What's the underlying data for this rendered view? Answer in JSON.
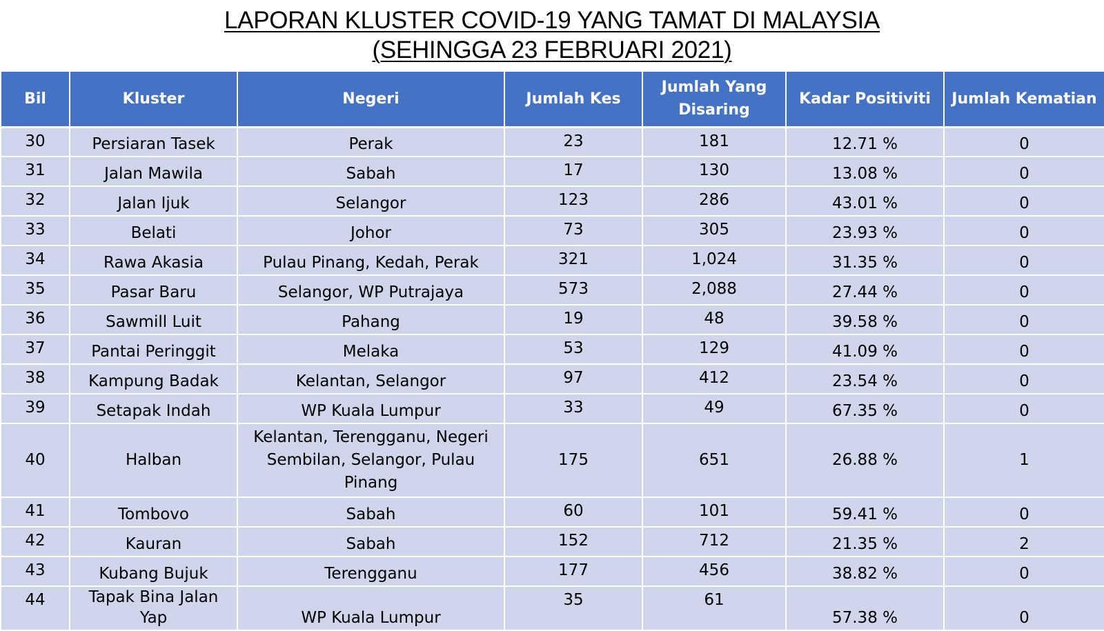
{
  "title": {
    "line1": "LAPORAN KLUSTER COVID-19 YANG TAMAT DI MALAYSIA",
    "line2": "(SEHINGGA  23 FEBRUARI 2021)"
  },
  "table": {
    "headers": [
      "Bil",
      "Kluster",
      "Negeri",
      "Jumlah Kes",
      "Jumlah Yang Disaring",
      "Kadar Positiviti",
      "Jumlah Kematian"
    ],
    "rows": [
      {
        "bil": "30",
        "kluster": "Persiaran Tasek",
        "negeri": "Perak",
        "kes": "23",
        "disaring": "181",
        "positiviti": "12.71 %",
        "kematian": "0"
      },
      {
        "bil": "31",
        "kluster": "Jalan Mawila",
        "negeri": "Sabah",
        "kes": "17",
        "disaring": "130",
        "positiviti": "13.08 %",
        "kematian": "0"
      },
      {
        "bil": "32",
        "kluster": "Jalan Ijuk",
        "negeri": "Selangor",
        "kes": "123",
        "disaring": "286",
        "positiviti": "43.01 %",
        "kematian": "0"
      },
      {
        "bil": "33",
        "kluster": "Belati",
        "negeri": "Johor",
        "kes": "73",
        "disaring": "305",
        "positiviti": "23.93 %",
        "kematian": "0"
      },
      {
        "bil": "34",
        "kluster": "Rawa Akasia",
        "negeri": "Pulau Pinang, Kedah, Perak",
        "kes": "321",
        "disaring": "1,024",
        "positiviti": "31.35 %",
        "kematian": "0"
      },
      {
        "bil": "35",
        "kluster": "Pasar Baru",
        "negeri": "Selangor, WP Putrajaya",
        "kes": "573",
        "disaring": "2,088",
        "positiviti": "27.44 %",
        "kematian": "0"
      },
      {
        "bil": "36",
        "kluster": "Sawmill Luit",
        "negeri": "Pahang",
        "kes": "19",
        "disaring": "48",
        "positiviti": "39.58 %",
        "kematian": "0"
      },
      {
        "bil": "37",
        "kluster": "Pantai Peringgit",
        "negeri": "Melaka",
        "kes": "53",
        "disaring": "129",
        "positiviti": "41.09 %",
        "kematian": "0"
      },
      {
        "bil": "38",
        "kluster": "Kampung Badak",
        "negeri": "Kelantan, Selangor",
        "kes": "97",
        "disaring": "412",
        "positiviti": "23.54 %",
        "kematian": "0"
      },
      {
        "bil": "39",
        "kluster": "Setapak Indah",
        "negeri": "WP Kuala Lumpur",
        "kes": "33",
        "disaring": "49",
        "positiviti": "67.35 %",
        "kematian": "0"
      },
      {
        "bil": "40",
        "kluster": "Halban",
        "negeri": "Kelantan, Terengganu, Negeri Sembilan, Selangor, Pulau Pinang",
        "kes": "175",
        "disaring": "651",
        "positiviti": "26.88 %",
        "kematian": "1"
      },
      {
        "bil": "41",
        "kluster": "Tombovo",
        "negeri": "Sabah",
        "kes": "60",
        "disaring": "101",
        "positiviti": "59.41 %",
        "kematian": "0"
      },
      {
        "bil": "42",
        "kluster": "Kauran",
        "negeri": "Sabah",
        "kes": "152",
        "disaring": "712",
        "positiviti": "21.35 %",
        "kematian": "2"
      },
      {
        "bil": "43",
        "kluster": "Kubang Bujuk",
        "negeri": "Terengganu",
        "kes": "177",
        "disaring": "456",
        "positiviti": "38.82 %",
        "kematian": "0"
      },
      {
        "bil": "44",
        "kluster": "Tapak Bina Jalan Yap",
        "negeri": "WP Kuala Lumpur",
        "kes": "35",
        "disaring": "61",
        "positiviti": "57.38 %",
        "kematian": "0"
      }
    ]
  }
}
